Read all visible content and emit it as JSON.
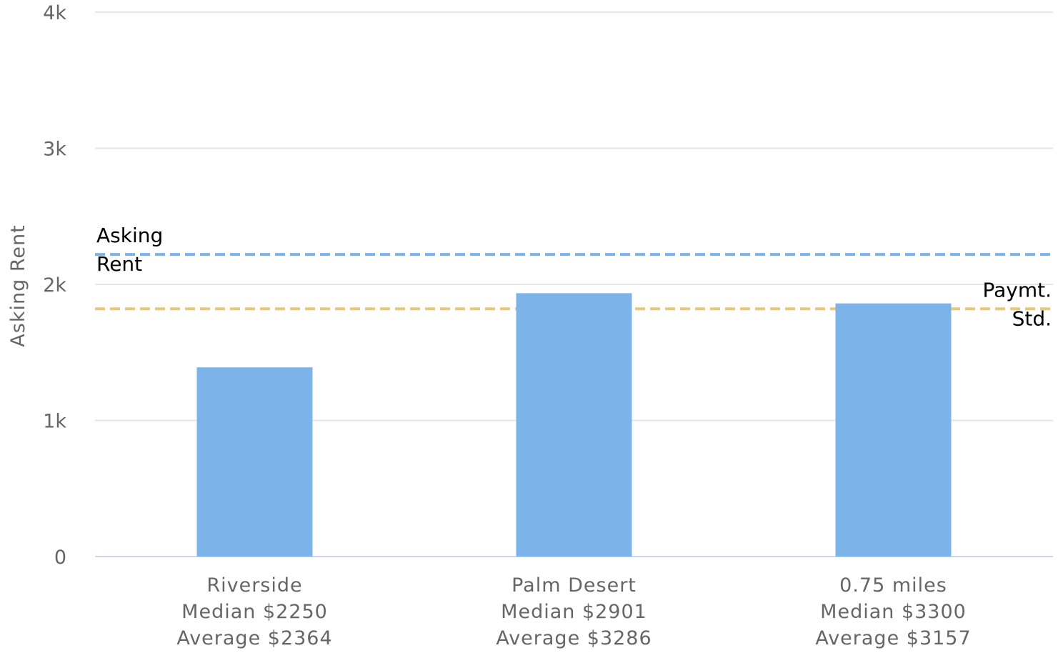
{
  "chart_data": {
    "type": "bar",
    "ylabel": "Asking Rent",
    "ylim": [
      0,
      4000
    ],
    "yticks": [
      0,
      1000,
      2000,
      3000,
      4000
    ],
    "ytick_labels": [
      "0",
      "1k",
      "2k",
      "3k",
      "4k"
    ],
    "grid": true,
    "legend": "none",
    "categories": [
      {
        "lines": [
          "Riverside",
          "Median $2250",
          "Average $2364"
        ]
      },
      {
        "lines": [
          "Palm Desert",
          "Median $2901",
          "Average $3286"
        ]
      },
      {
        "lines": [
          "0.75 miles",
          "Median $3300",
          "Average $3157"
        ]
      }
    ],
    "values": [
      1390,
      1935,
      1860
    ],
    "bar_color": "#7cb4ea",
    "reference_lines": [
      {
        "value": 2220,
        "label_lines": [
          "Asking",
          "Rent"
        ],
        "color": "#7cb4ea",
        "label_align": "left"
      },
      {
        "value": 1820,
        "label_lines": [
          "Paymt.",
          "Std."
        ],
        "color": "#e8c779",
        "label_align": "right"
      }
    ],
    "colors": {
      "grid": "#e6e6e6",
      "axis": "#ccd6eb",
      "text": "#666666"
    }
  }
}
